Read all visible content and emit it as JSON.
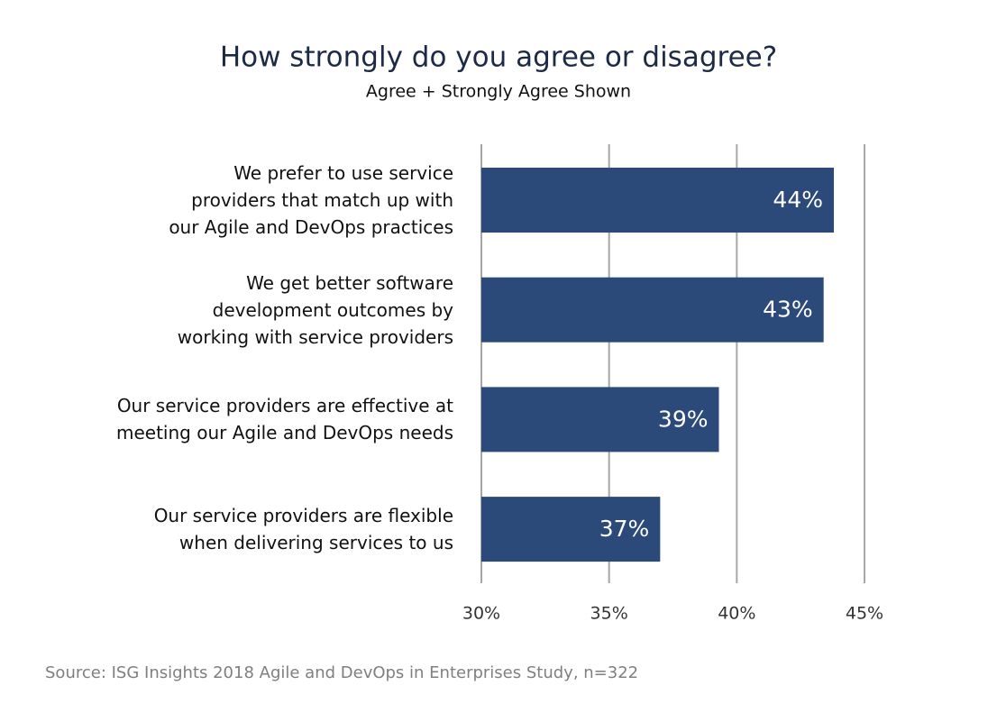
{
  "chart_data": {
    "type": "hbar",
    "title": "How strongly do you agree or disagree?",
    "subtitle": "Agree + Strongly Agree Shown",
    "categories": [
      "We prefer to use service\nproviders that match up with\nour Agile and DevOps practices",
      "We get better software\ndevelopment outcomes by\nworking with service providers",
      "Our service providers are effective at\nmeeting our Agile and DevOps needs",
      "Our service providers are flexible\nwhen delivering services to us"
    ],
    "values": [
      43.8,
      43.4,
      39.3,
      37.0
    ],
    "value_labels": [
      "44%",
      "43%",
      "39%",
      "37%"
    ],
    "color": "#2b4a7a",
    "xlim": [
      30,
      45
    ],
    "xticks": [
      {
        "value": 30,
        "label": "30%"
      },
      {
        "value": 35,
        "label": "35%"
      },
      {
        "value": 40,
        "label": "40%"
      },
      {
        "value": 45,
        "label": "45%"
      }
    ],
    "grid": true,
    "source": "Source: ISG Insights 2018 Agile and DevOps in Enterprises Study, n=322"
  }
}
